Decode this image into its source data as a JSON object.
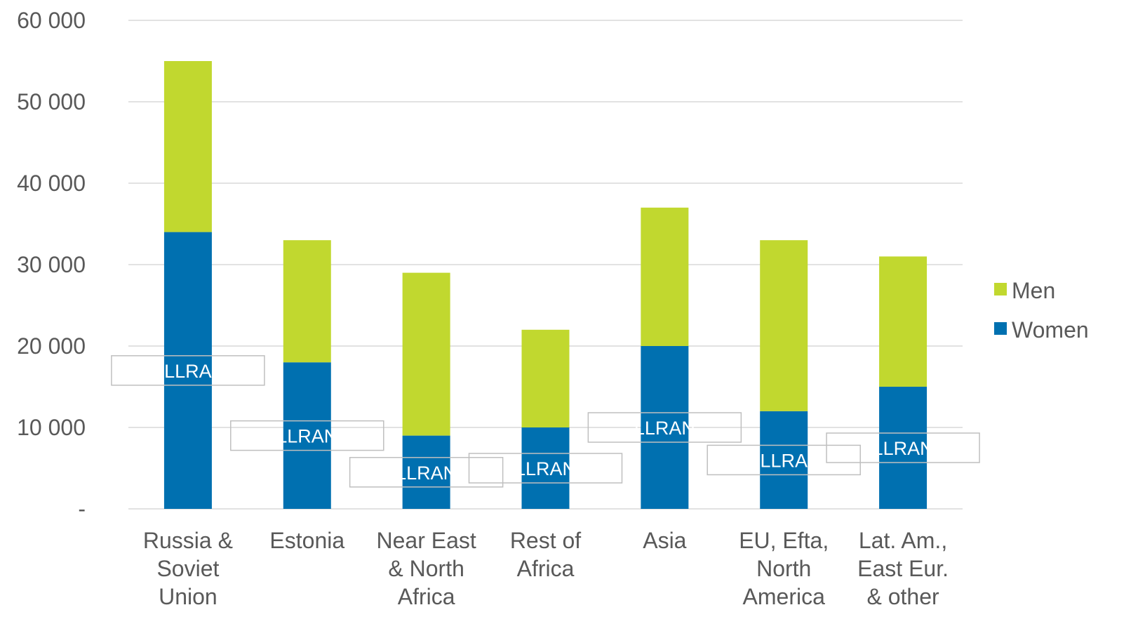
{
  "chart_data": {
    "type": "bar",
    "stacked": true,
    "categories": [
      [
        "Russia &",
        "Soviet",
        "Union"
      ],
      [
        "Estonia"
      ],
      [
        "Near East",
        "& North",
        "Africa"
      ],
      [
        "Rest of",
        "Africa"
      ],
      [
        "Asia"
      ],
      [
        "EU, Efta,",
        "North",
        "America"
      ],
      [
        "Lat. Am.,",
        "East Eur.",
        "& other"
      ]
    ],
    "series": [
      {
        "name": "Women",
        "color": "#0070b0",
        "values": [
          34000,
          18000,
          9000,
          10000,
          20000,
          12000,
          15000
        ]
      },
      {
        "name": "Men",
        "color": "#c1d82f",
        "values": [
          21000,
          15000,
          20000,
          12000,
          17000,
          21000,
          16000
        ]
      }
    ],
    "ylim": [
      0,
      60000
    ],
    "yticks": [
      0,
      10000,
      20000,
      30000,
      40000,
      50000,
      60000
    ],
    "ytick_labels": [
      "-",
      "10 000",
      "20 000",
      "30 000",
      "40 000",
      "50 000",
      "60 000"
    ],
    "grid": true,
    "legend": {
      "position": "right",
      "entries": [
        "Men",
        "Women"
      ]
    },
    "data_labels": [
      "LLRA",
      "LLRAN",
      "LLRAN",
      "LLRAN",
      "LLRAN",
      "LLRA",
      "LLRAN"
    ],
    "gridline_color": "#d9d9d9"
  }
}
